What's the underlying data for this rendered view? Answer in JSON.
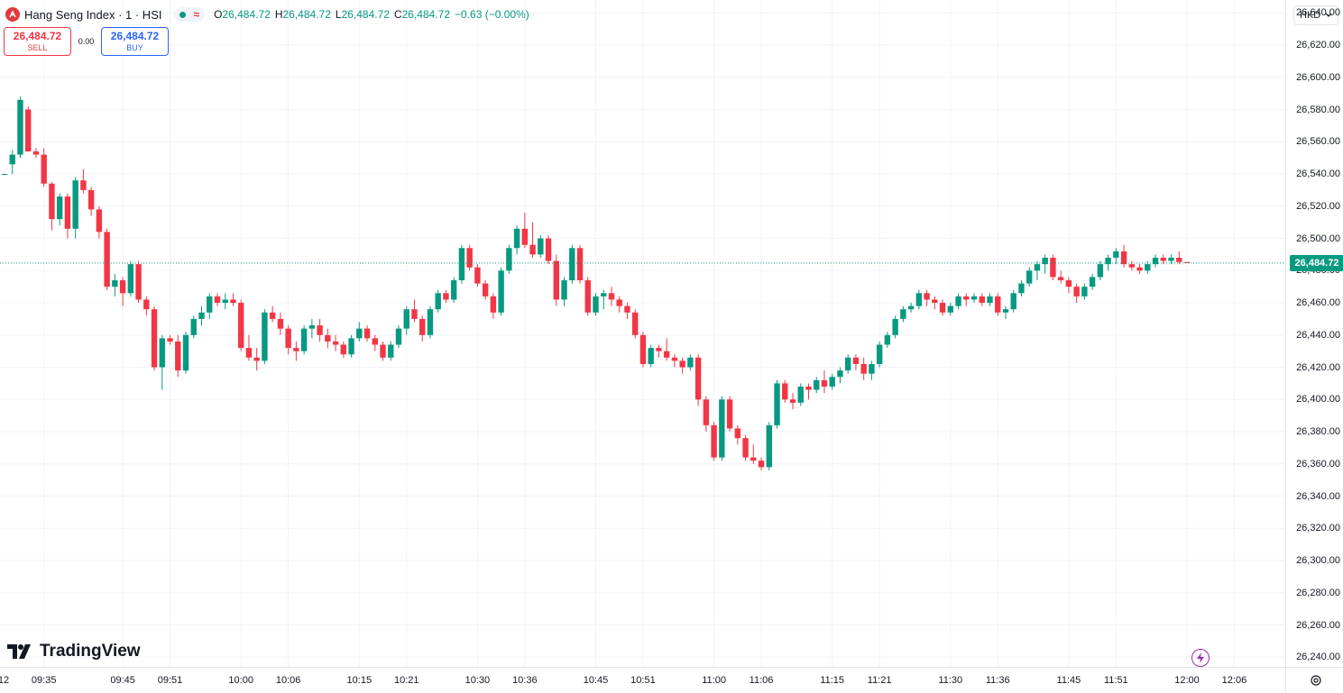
{
  "legend": {
    "title": "Hang Seng Index · 1 · HSI",
    "open_label": "O",
    "open": "26,484.72",
    "high_label": "H",
    "high": "26,484.72",
    "low_label": "L",
    "low": "26,484.72",
    "close_label": "C",
    "close": "26,484.72",
    "change": "−0.63 (−0.00%)",
    "status_symbol": "≈"
  },
  "trade": {
    "sell_price": "26,484.72",
    "sell_label": "SELL",
    "spread": "0.00",
    "buy_price": "26,484.72",
    "buy_label": "BUY"
  },
  "brand": {
    "name": "TradingView"
  },
  "currency": {
    "value": "HKD"
  },
  "colors": {
    "up": "#089981",
    "down": "#f23645",
    "grid": "#f0f3fa",
    "last_price_line": "#089981",
    "bolt": "#9c27b0"
  },
  "icons": [
    "hsi-logo-icon",
    "market-open-dot-icon",
    "chevron-down-icon",
    "tradingview-logo-icon",
    "lightning-bolt-icon",
    "settings-gear-icon"
  ],
  "chart_data": {
    "type": "candlestick",
    "interval": "1 minute",
    "ylim": [
      26234,
      26648
    ],
    "y_ticks": [
      26240,
      26260,
      26280,
      26300,
      26320,
      26340,
      26360,
      26380,
      26400,
      26420,
      26440,
      26460,
      26480,
      26500,
      26520,
      26540,
      26560,
      26580,
      26600,
      26620,
      26640
    ],
    "x_ticks": [
      {
        "label": "12",
        "index": -4
      },
      {
        "label": "09:35",
        "index": 5
      },
      {
        "label": "09:45",
        "index": 15
      },
      {
        "label": "09:51",
        "index": 21
      },
      {
        "label": "10:00",
        "index": 30
      },
      {
        "label": "10:06",
        "index": 36
      },
      {
        "label": "10:15",
        "index": 45
      },
      {
        "label": "10:21",
        "index": 51
      },
      {
        "label": "10:30",
        "index": 60
      },
      {
        "label": "10:36",
        "index": 66
      },
      {
        "label": "10:45",
        "index": 75
      },
      {
        "label": "10:51",
        "index": 81
      },
      {
        "label": "11:00",
        "index": 90
      },
      {
        "label": "11:06",
        "index": 96
      },
      {
        "label": "11:15",
        "index": 105
      },
      {
        "label": "11:21",
        "index": 111
      },
      {
        "label": "11:30",
        "index": 120
      },
      {
        "label": "11:36",
        "index": 126
      },
      {
        "label": "11:45",
        "index": 135
      },
      {
        "label": "11:51",
        "index": 141
      },
      {
        "label": "12:00",
        "index": 150
      },
      {
        "label": "12:06",
        "index": 156
      }
    ],
    "last_price": 26484.72,
    "last_price_label": "26,484.72",
    "candles": [
      [
        26540,
        26540,
        26540,
        26540
      ],
      [
        26546,
        26555,
        26540,
        26552
      ],
      [
        26552,
        26588,
        26550,
        26586
      ],
      [
        26580,
        26582,
        26554,
        26554
      ],
      [
        26554,
        26556,
        26550,
        26552
      ],
      [
        26552,
        26556,
        26532,
        26534
      ],
      [
        26534,
        26535,
        26505,
        26512
      ],
      [
        26512,
        26528,
        26508,
        26526
      ],
      [
        26526,
        26528,
        26500,
        26506
      ],
      [
        26506,
        26538,
        26500,
        26536
      ],
      [
        26536,
        26543,
        26528,
        26530
      ],
      [
        26530,
        26532,
        26514,
        26518
      ],
      [
        26518,
        26520,
        26500,
        26504
      ],
      [
        26504,
        26506,
        26468,
        26470
      ],
      [
        26470,
        26478,
        26464,
        26474
      ],
      [
        26474,
        26476,
        26458,
        26466
      ],
      [
        26466,
        26486,
        26464,
        26484
      ],
      [
        26484,
        26486,
        26460,
        26462
      ],
      [
        26462,
        26464,
        26452,
        26456
      ],
      [
        26456,
        26458,
        26418,
        26420
      ],
      [
        26420,
        26440,
        26406,
        26438
      ],
      [
        26438,
        26440,
        26434,
        26436
      ],
      [
        26436,
        26440,
        26414,
        26418
      ],
      [
        26418,
        26442,
        26416,
        26440
      ],
      [
        26440,
        26452,
        26438,
        26450
      ],
      [
        26450,
        26458,
        26446,
        26454
      ],
      [
        26454,
        26466,
        26450,
        26464
      ],
      [
        26464,
        26466,
        26458,
        26460
      ],
      [
        26460,
        26466,
        26456,
        26462
      ],
      [
        26462,
        26466,
        26458,
        26460
      ],
      [
        26460,
        26462,
        26430,
        26432
      ],
      [
        26432,
        26440,
        26424,
        26426
      ],
      [
        26426,
        26432,
        26418,
        26424
      ],
      [
        26424,
        26456,
        26422,
        26454
      ],
      [
        26454,
        26458,
        26448,
        26450
      ],
      [
        26450,
        26454,
        26440,
        26444
      ],
      [
        26444,
        26446,
        26428,
        26432
      ],
      [
        26432,
        26436,
        26424,
        26430
      ],
      [
        26430,
        26446,
        26428,
        26444
      ],
      [
        26444,
        26450,
        26438,
        26446
      ],
      [
        26446,
        26450,
        26436,
        26440
      ],
      [
        26440,
        26444,
        26432,
        26436
      ],
      [
        26436,
        26440,
        26430,
        26434
      ],
      [
        26434,
        26436,
        26426,
        26428
      ],
      [
        26428,
        26440,
        26426,
        26438
      ],
      [
        26438,
        26448,
        26436,
        26444
      ],
      [
        26444,
        26446,
        26436,
        26438
      ],
      [
        26438,
        26440,
        26430,
        26434
      ],
      [
        26434,
        26436,
        26424,
        26426
      ],
      [
        26426,
        26436,
        26424,
        26434
      ],
      [
        26434,
        26446,
        26432,
        26444
      ],
      [
        26444,
        26458,
        26440,
        26456
      ],
      [
        26456,
        26462,
        26448,
        26450
      ],
      [
        26450,
        26452,
        26436,
        26440
      ],
      [
        26440,
        26458,
        26438,
        26456
      ],
      [
        26456,
        26468,
        26454,
        26466
      ],
      [
        26466,
        26468,
        26460,
        26462
      ],
      [
        26462,
        26476,
        26460,
        26474
      ],
      [
        26474,
        26496,
        26472,
        26494
      ],
      [
        26494,
        26496,
        26480,
        26482
      ],
      [
        26482,
        26484,
        26470,
        26472
      ],
      [
        26472,
        26474,
        26462,
        26464
      ],
      [
        26464,
        26466,
        26450,
        26454
      ],
      [
        26454,
        26482,
        26452,
        26480
      ],
      [
        26480,
        26496,
        26478,
        26494
      ],
      [
        26494,
        26508,
        26490,
        26506
      ],
      [
        26506,
        26516,
        26494,
        26496
      ],
      [
        26496,
        26510,
        26488,
        26490
      ],
      [
        26490,
        26502,
        26488,
        26500
      ],
      [
        26500,
        26502,
        26484,
        26486
      ],
      [
        26486,
        26490,
        26458,
        26462
      ],
      [
        26462,
        26476,
        26458,
        26474
      ],
      [
        26474,
        26496,
        26472,
        26494
      ],
      [
        26494,
        26496,
        26472,
        26474
      ],
      [
        26474,
        26476,
        26452,
        26454
      ],
      [
        26454,
        26466,
        26452,
        26464
      ],
      [
        26464,
        26468,
        26456,
        26466
      ],
      [
        26466,
        26470,
        26458,
        26462
      ],
      [
        26462,
        26464,
        26454,
        26458
      ],
      [
        26458,
        26460,
        26450,
        26454
      ],
      [
        26454,
        26456,
        26438,
        26440
      ],
      [
        26440,
        26442,
        26420,
        26422
      ],
      [
        26422,
        26434,
        26420,
        26432
      ],
      [
        26432,
        26434,
        26426,
        26430
      ],
      [
        26430,
        26438,
        26424,
        26426
      ],
      [
        26426,
        26428,
        26420,
        26424
      ],
      [
        26424,
        26426,
        26416,
        26420
      ],
      [
        26420,
        26428,
        26418,
        26426
      ],
      [
        26426,
        26428,
        26396,
        26400
      ],
      [
        26400,
        26402,
        26380,
        26384
      ],
      [
        26384,
        26386,
        26362,
        26364
      ],
      [
        26364,
        26402,
        26362,
        26400
      ],
      [
        26400,
        26402,
        26380,
        26382
      ],
      [
        26382,
        26384,
        26372,
        26376
      ],
      [
        26376,
        26378,
        26362,
        26364
      ],
      [
        26364,
        26372,
        26360,
        26362
      ],
      [
        26362,
        26364,
        26356,
        26358
      ],
      [
        26358,
        26386,
        26356,
        26384
      ],
      [
        26384,
        26412,
        26382,
        26410
      ],
      [
        26410,
        26412,
        26398,
        26400
      ],
      [
        26400,
        26404,
        26394,
        26398
      ],
      [
        26398,
        26410,
        26396,
        26408
      ],
      [
        26408,
        26410,
        26400,
        26406
      ],
      [
        26406,
        26414,
        26404,
        26412
      ],
      [
        26412,
        26418,
        26404,
        26408
      ],
      [
        26408,
        26416,
        26406,
        26414
      ],
      [
        26414,
        26420,
        26410,
        26418
      ],
      [
        26418,
        26428,
        26416,
        26426
      ],
      [
        26426,
        26428,
        26418,
        26422
      ],
      [
        26422,
        26426,
        26412,
        26416
      ],
      [
        26416,
        26424,
        26412,
        26422
      ],
      [
        26422,
        26436,
        26420,
        26434
      ],
      [
        26434,
        26442,
        26432,
        26440
      ],
      [
        26440,
        26452,
        26438,
        26450
      ],
      [
        26450,
        26458,
        26448,
        26456
      ],
      [
        26456,
        26460,
        26454,
        26458
      ],
      [
        26458,
        26468,
        26456,
        26466
      ],
      [
        26466,
        26468,
        26458,
        26462
      ],
      [
        26462,
        26464,
        26456,
        26460
      ],
      [
        26460,
        26462,
        26452,
        26454
      ],
      [
        26454,
        26460,
        26452,
        26458
      ],
      [
        26458,
        26466,
        26456,
        26464
      ],
      [
        26464,
        26466,
        26458,
        26462
      ],
      [
        26462,
        26466,
        26460,
        26464
      ],
      [
        26464,
        26466,
        26458,
        26460
      ],
      [
        26460,
        26466,
        26458,
        26464
      ],
      [
        26464,
        26466,
        26452,
        26454
      ],
      [
        26454,
        26458,
        26450,
        26456
      ],
      [
        26456,
        26468,
        26454,
        26466
      ],
      [
        26466,
        26474,
        26464,
        26472
      ],
      [
        26472,
        26482,
        26470,
        26480
      ],
      [
        26480,
        26486,
        26474,
        26484
      ],
      [
        26484,
        26490,
        26478,
        26488
      ],
      [
        26488,
        26490,
        26474,
        26476
      ],
      [
        26476,
        26480,
        26472,
        26474
      ],
      [
        26474,
        26476,
        26466,
        26470
      ],
      [
        26470,
        26472,
        26460,
        26464
      ],
      [
        26464,
        26472,
        26462,
        26470
      ],
      [
        26470,
        26478,
        26468,
        26476
      ],
      [
        26476,
        26486,
        26474,
        26484
      ],
      [
        26484,
        26490,
        26480,
        26488
      ],
      [
        26488,
        26494,
        26484,
        26492
      ],
      [
        26492,
        26496,
        26482,
        26484
      ],
      [
        26484,
        26486,
        26480,
        26482
      ],
      [
        26482,
        26484,
        26478,
        26480
      ],
      [
        26480,
        26486,
        26478,
        26484
      ],
      [
        26484,
        26490,
        26482,
        26488
      ],
      [
        26488,
        26490,
        26484,
        26486
      ],
      [
        26486,
        26490,
        26484,
        26488
      ],
      [
        26488,
        26492,
        26484,
        26485.35
      ],
      [
        26485.35,
        26485.35,
        26484.72,
        26484.72
      ]
    ]
  }
}
